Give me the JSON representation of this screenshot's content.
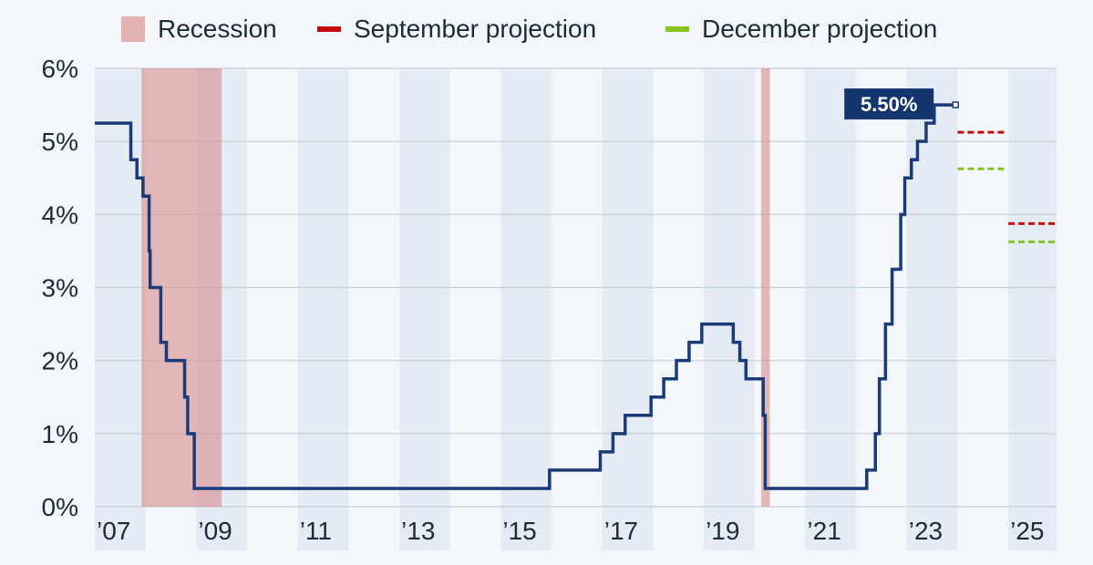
{
  "legend": [
    {
      "label": "Recession",
      "kind": "box",
      "color": "#e3b3b3"
    },
    {
      "label": "September projection",
      "kind": "dash",
      "color": "#c40a0a"
    },
    {
      "label": "December projection",
      "kind": "dash",
      "color": "#88c21a"
    }
  ],
  "chart_data": {
    "type": "line",
    "ylim": [
      0,
      6
    ],
    "yticks": [
      0,
      1,
      2,
      3,
      4,
      5,
      6
    ],
    "ytick_labels": [
      "0%",
      "1%",
      "2%",
      "3%",
      "4%",
      "5%",
      "6%"
    ],
    "xlim": [
      2007,
      2025.95
    ],
    "xticks": [
      2007,
      2009,
      2011,
      2013,
      2015,
      2017,
      2019,
      2021,
      2023,
      2025
    ],
    "xtick_labels": [
      "’07",
      "’09",
      "’11",
      "’13",
      "’15",
      "’17",
      "’19",
      "’21",
      "’23",
      "’25"
    ],
    "grid": true,
    "recessions": [
      [
        2007.92,
        2009.5
      ],
      [
        2020.13,
        2020.3
      ]
    ],
    "series": [
      {
        "color": "#1a3b78",
        "steps": [
          [
            2007.0,
            5.25
          ],
          [
            2007.71,
            4.75
          ],
          [
            2007.83,
            4.5
          ],
          [
            2007.95,
            4.25
          ],
          [
            2008.07,
            3.5
          ],
          [
            2008.09,
            3.0
          ],
          [
            2008.3,
            2.25
          ],
          [
            2008.41,
            2.0
          ],
          [
            2008.77,
            1.5
          ],
          [
            2008.83,
            1.0
          ],
          [
            2008.96,
            0.25
          ],
          [
            2015.96,
            0.5
          ],
          [
            2016.96,
            0.75
          ],
          [
            2017.21,
            1.0
          ],
          [
            2017.45,
            1.25
          ],
          [
            2017.96,
            1.5
          ],
          [
            2018.21,
            1.75
          ],
          [
            2018.46,
            2.0
          ],
          [
            2018.71,
            2.25
          ],
          [
            2018.96,
            2.5
          ],
          [
            2019.58,
            2.25
          ],
          [
            2019.71,
            2.0
          ],
          [
            2019.83,
            1.75
          ],
          [
            2020.17,
            1.25
          ],
          [
            2020.21,
            0.25
          ],
          [
            2022.21,
            0.5
          ],
          [
            2022.38,
            1.0
          ],
          [
            2022.46,
            1.75
          ],
          [
            2022.58,
            2.5
          ],
          [
            2022.71,
            3.25
          ],
          [
            2022.88,
            4.0
          ],
          [
            2022.96,
            4.5
          ],
          [
            2023.09,
            4.75
          ],
          [
            2023.21,
            5.0
          ],
          [
            2023.38,
            5.25
          ],
          [
            2023.54,
            5.5
          ]
        ],
        "end_x": 2023.96,
        "end_label": "5.50%"
      }
    ],
    "projections": [
      {
        "name": "September projection",
        "color": "#c40a0a",
        "x": [
          2024.0,
          2024.96
        ],
        "value": 5.125
      },
      {
        "name": "December projection",
        "color": "#88c21a",
        "x": [
          2024.0,
          2024.96
        ],
        "value": 4.625
      },
      {
        "name": "September projection",
        "color": "#c40a0a",
        "x": [
          2025.0,
          2025.95
        ],
        "value": 3.875
      },
      {
        "name": "December projection",
        "color": "#88c21a",
        "x": [
          2025.0,
          2025.95
        ],
        "value": 3.625
      }
    ],
    "colors": {
      "band": "#e4ebf4",
      "gridline": "#c8ced6",
      "axis_text": "#1d2a3a",
      "label_bg": "#14366e",
      "label_text": "#ffffff",
      "recession": "#d88f8f"
    }
  }
}
